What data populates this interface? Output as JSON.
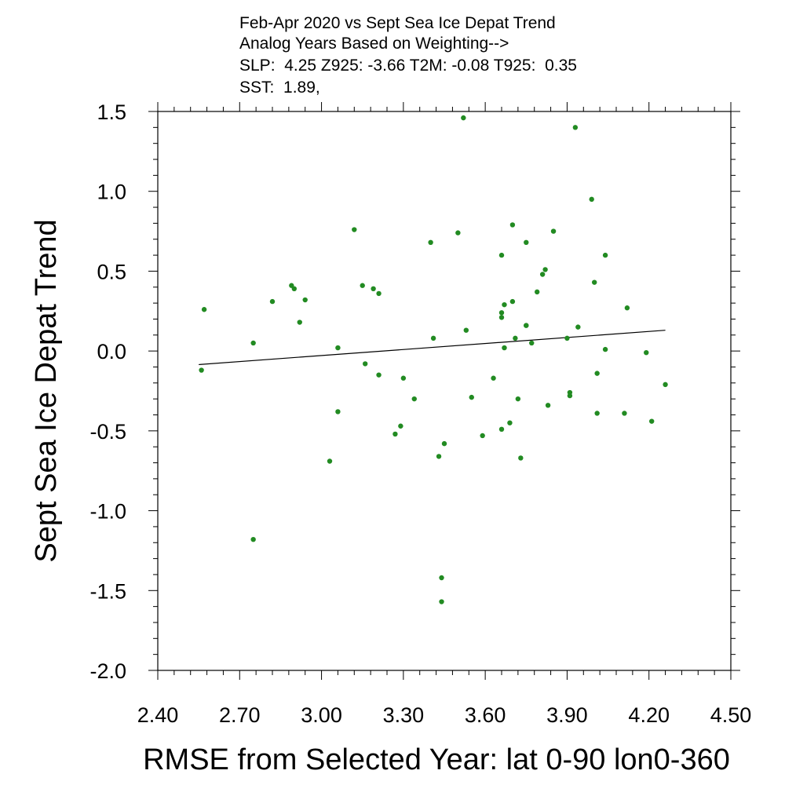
{
  "title": {
    "line1": "Feb-Apr 2020 vs Sept Sea Ice Depat Trend",
    "line2": "Analog Years Based on Weighting-->",
    "line3": "SLP:  4.25 Z925: -3.66 T2M: -0.08 T925:  0.35",
    "line4": "SST:  1.89,"
  },
  "chart_data": {
    "type": "scatter",
    "xlabel": "RMSE from Selected Year: lat 0-90 lon0-360",
    "ylabel": "Sept Sea Ice Depat Trend",
    "xlim": [
      2.4,
      4.5
    ],
    "ylim": [
      -2.0,
      1.5
    ],
    "xticks": [
      "2.40",
      "2.70",
      "3.00",
      "3.30",
      "3.60",
      "3.90",
      "4.20",
      "4.50"
    ],
    "yticks": [
      "1.5",
      "1.0",
      "0.5",
      "0.0",
      "-0.5",
      "-1.0",
      "-1.5",
      "-2.0"
    ],
    "grid": false,
    "point_color": "#228b22",
    "trend_color": "#000000",
    "points": [
      [
        2.56,
        -0.12
      ],
      [
        2.57,
        0.26
      ],
      [
        2.75,
        0.05
      ],
      [
        2.75,
        -1.18
      ],
      [
        2.82,
        0.31
      ],
      [
        2.89,
        0.41
      ],
      [
        2.9,
        0.39
      ],
      [
        2.92,
        0.18
      ],
      [
        2.94,
        0.32
      ],
      [
        3.03,
        -0.69
      ],
      [
        3.06,
        -0.38
      ],
      [
        3.06,
        0.02
      ],
      [
        3.12,
        0.76
      ],
      [
        3.15,
        0.41
      ],
      [
        3.16,
        -0.08
      ],
      [
        3.19,
        0.39
      ],
      [
        3.21,
        0.36
      ],
      [
        3.21,
        -0.15
      ],
      [
        3.27,
        -0.52
      ],
      [
        3.29,
        -0.47
      ],
      [
        3.3,
        -0.17
      ],
      [
        3.34,
        -0.3
      ],
      [
        3.4,
        0.68
      ],
      [
        3.41,
        0.08
      ],
      [
        3.43,
        -0.66
      ],
      [
        3.44,
        -1.42
      ],
      [
        3.44,
        -1.57
      ],
      [
        3.45,
        -0.58
      ],
      [
        3.5,
        0.74
      ],
      [
        3.52,
        1.46
      ],
      [
        3.53,
        0.13
      ],
      [
        3.55,
        -0.29
      ],
      [
        3.59,
        -0.53
      ],
      [
        3.63,
        -0.17
      ],
      [
        3.66,
        0.6
      ],
      [
        3.66,
        0.24
      ],
      [
        3.66,
        0.21
      ],
      [
        3.66,
        -0.49
      ],
      [
        3.67,
        0.29
      ],
      [
        3.67,
        0.02
      ],
      [
        3.69,
        -0.45
      ],
      [
        3.7,
        0.31
      ],
      [
        3.7,
        0.79
      ],
      [
        3.71,
        0.08
      ],
      [
        3.72,
        -0.3
      ],
      [
        3.73,
        -0.67
      ],
      [
        3.75,
        0.68
      ],
      [
        3.75,
        0.16
      ],
      [
        3.75,
        0.16
      ],
      [
        3.77,
        0.05
      ],
      [
        3.79,
        0.37
      ],
      [
        3.81,
        0.48
      ],
      [
        3.82,
        0.51
      ],
      [
        3.83,
        -0.34
      ],
      [
        3.85,
        0.75
      ],
      [
        3.9,
        0.08
      ],
      [
        3.91,
        -0.26
      ],
      [
        3.91,
        -0.28
      ],
      [
        3.93,
        1.4
      ],
      [
        3.94,
        0.15
      ],
      [
        3.99,
        0.95
      ],
      [
        4.0,
        0.43
      ],
      [
        4.01,
        -0.14
      ],
      [
        4.01,
        -0.39
      ],
      [
        4.04,
        0.01
      ],
      [
        4.04,
        0.6
      ],
      [
        4.11,
        -0.39
      ],
      [
        4.12,
        0.27
      ],
      [
        4.19,
        -0.01
      ],
      [
        4.21,
        -0.44
      ],
      [
        4.26,
        -0.21
      ]
    ],
    "trend_line": [
      [
        2.55,
        -0.085
      ],
      [
        4.26,
        0.13
      ]
    ]
  }
}
